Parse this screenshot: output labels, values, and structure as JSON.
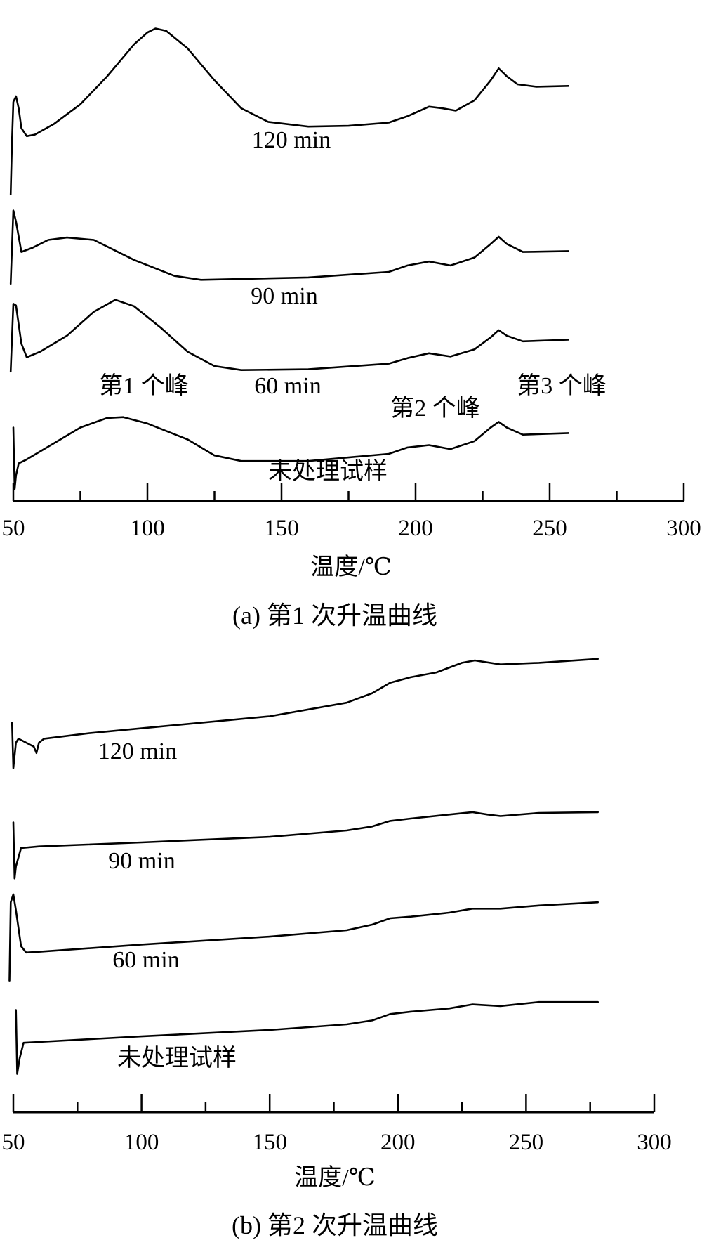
{
  "chart_data": [
    {
      "type": "line",
      "title": "(a) 第1 次升温曲线",
      "xlabel": "温度/℃",
      "ylabel": "",
      "xlim": [
        50,
        300
      ],
      "ylim": [
        0,
        630
      ],
      "xticks": [
        50,
        100,
        150,
        200,
        250,
        300
      ],
      "minor_xticks": [
        75,
        125,
        175,
        225,
        275
      ],
      "y_units": "relative heat flow (arbitrary, offset curves)",
      "grid": false,
      "series": [
        {
          "name": "120 min",
          "points": [
            [
              49,
              384
            ],
            [
              49.5,
              450
            ],
            [
              50,
              500
            ],
            [
              51,
              507
            ],
            [
              52,
              492
            ],
            [
              53,
              467
            ],
            [
              55,
              457
            ],
            [
              58,
              459
            ],
            [
              65,
              472
            ],
            [
              75,
              497
            ],
            [
              85,
              532
            ],
            [
              95,
              572
            ],
            [
              100,
              587
            ],
            [
              103,
              592
            ],
            [
              107,
              589
            ],
            [
              115,
              567
            ],
            [
              125,
              527
            ],
            [
              135,
              492
            ],
            [
              145,
              475
            ],
            [
              160,
              469
            ],
            [
              175,
              470
            ],
            [
              190,
              474
            ],
            [
              197,
              482
            ],
            [
              205,
              494
            ],
            [
              210,
              492
            ],
            [
              215,
              489
            ],
            [
              222,
              502
            ],
            [
              228,
              527
            ],
            [
              231,
              542
            ],
            [
              234,
              532
            ],
            [
              238,
              522
            ],
            [
              245,
              519
            ],
            [
              257,
              520
            ]
          ]
        },
        {
          "name": "90 min",
          "points": [
            [
              49,
              272
            ],
            [
              50,
              364
            ],
            [
              51,
              350
            ],
            [
              53,
              312
            ],
            [
              57,
              317
            ],
            [
              63,
              327
            ],
            [
              70,
              330
            ],
            [
              80,
              327
            ],
            [
              95,
              302
            ],
            [
              110,
              282
            ],
            [
              120,
              277
            ],
            [
              160,
              280
            ],
            [
              190,
              287
            ],
            [
              197,
              295
            ],
            [
              205,
              300
            ],
            [
              213,
              295
            ],
            [
              222,
              305
            ],
            [
              228,
              322
            ],
            [
              231,
              331
            ],
            [
              234,
              322
            ],
            [
              240,
              312
            ],
            [
              257,
              313
            ]
          ]
        },
        {
          "name": "60 min",
          "points": [
            [
              49,
              162
            ],
            [
              50,
              247
            ],
            [
              51,
              245
            ],
            [
              53,
              197
            ],
            [
              55,
              180
            ],
            [
              60,
              187
            ],
            [
              70,
              207
            ],
            [
              80,
              237
            ],
            [
              88,
              252
            ],
            [
              95,
              244
            ],
            [
              105,
              217
            ],
            [
              115,
              187
            ],
            [
              125,
              169
            ],
            [
              135,
              164
            ],
            [
              160,
              165
            ],
            [
              190,
              172
            ],
            [
              197,
              179
            ],
            [
              205,
              185
            ],
            [
              213,
              181
            ],
            [
              222,
              190
            ],
            [
              228,
              205
            ],
            [
              231,
              214
            ],
            [
              234,
              207
            ],
            [
              240,
              200
            ],
            [
              257,
              202
            ]
          ]
        },
        {
          "name": "未处理试样",
          "points": [
            [
              50,
              92
            ],
            [
              50.5,
              15
            ],
            [
              51,
              32
            ],
            [
              52,
              47
            ],
            [
              55,
              52
            ],
            [
              65,
              72
            ],
            [
              75,
              92
            ],
            [
              85,
              104
            ],
            [
              91,
              105
            ],
            [
              100,
              97
            ],
            [
              115,
              77
            ],
            [
              125,
              57
            ],
            [
              135,
              50
            ],
            [
              160,
              50
            ],
            [
              190,
              59
            ],
            [
              197,
              67
            ],
            [
              205,
              70
            ],
            [
              213,
              65
            ],
            [
              222,
              75
            ],
            [
              228,
              92
            ],
            [
              231,
              99
            ],
            [
              234,
              92
            ],
            [
              240,
              83
            ],
            [
              257,
              85
            ]
          ]
        }
      ],
      "annotations": [
        "120 min",
        "90 min",
        "60 min",
        "第1 个峰",
        "第2 个峰",
        "第3 个峰",
        "未处理试样"
      ]
    },
    {
      "type": "line",
      "title": "(b) 第2 次升温曲线",
      "xlabel": "温度/℃",
      "ylabel": "",
      "xlim": [
        50,
        300
      ],
      "ylim": [
        0,
        630
      ],
      "xticks": [
        50,
        100,
        150,
        200,
        250,
        300
      ],
      "minor_xticks": [
        75,
        125,
        175,
        225,
        275
      ],
      "y_units": "relative heat flow (arbitrary, offset curves)",
      "grid": false,
      "series": [
        {
          "name": "120 min",
          "points": [
            [
              49.5,
              488
            ],
            [
              50,
              431
            ],
            [
              51,
              463
            ],
            [
              52,
              468
            ],
            [
              55,
              463
            ],
            [
              58,
              458
            ],
            [
              59,
              450
            ],
            [
              60,
              463
            ],
            [
              62,
              468
            ],
            [
              80,
              475
            ],
            [
              100,
              481
            ],
            [
              150,
              496
            ],
            [
              180,
              513
            ],
            [
              190,
              525
            ],
            [
              197,
              538
            ],
            [
              205,
              545
            ],
            [
              215,
              551
            ],
            [
              225,
              563
            ],
            [
              230,
              566
            ],
            [
              240,
              561
            ],
            [
              255,
              563
            ],
            [
              278,
              568
            ]
          ]
        },
        {
          "name": "90 min",
          "points": [
            [
              50,
              363
            ],
            [
              50.5,
              293
            ],
            [
              51,
              308
            ],
            [
              53,
              331
            ],
            [
              60,
              333
            ],
            [
              100,
              338
            ],
            [
              150,
              345
            ],
            [
              180,
              353
            ],
            [
              190,
              358
            ],
            [
              197,
              365
            ],
            [
              205,
              368
            ],
            [
              220,
              373
            ],
            [
              229,
              376
            ],
            [
              235,
              373
            ],
            [
              240,
              371
            ],
            [
              255,
              375
            ],
            [
              278,
              376
            ]
          ]
        },
        {
          "name": "60 min",
          "points": [
            [
              48.5,
              165
            ],
            [
              49,
              263
            ],
            [
              50,
              273
            ],
            [
              51,
              253
            ],
            [
              53,
              208
            ],
            [
              55,
              200
            ],
            [
              60,
              201
            ],
            [
              100,
              210
            ],
            [
              150,
              220
            ],
            [
              180,
              228
            ],
            [
              190,
              235
            ],
            [
              197,
              243
            ],
            [
              205,
              245
            ],
            [
              220,
              250
            ],
            [
              229,
              255
            ],
            [
              240,
              255
            ],
            [
              255,
              259
            ],
            [
              278,
              263
            ]
          ]
        },
        {
          "name": "未处理试样",
          "points": [
            [
              51,
              128
            ],
            [
              51.5,
              48
            ],
            [
              52.5,
              68
            ],
            [
              54,
              87
            ],
            [
              60,
              88
            ],
            [
              100,
              95
            ],
            [
              150,
              103
            ],
            [
              180,
              110
            ],
            [
              190,
              115
            ],
            [
              197,
              123
            ],
            [
              205,
              126
            ],
            [
              220,
              130
            ],
            [
              229,
              135
            ],
            [
              240,
              133
            ],
            [
              255,
              138
            ],
            [
              278,
              138
            ]
          ]
        }
      ],
      "annotations": [
        "120 min",
        "90 min",
        "60 min",
        "未处理试样"
      ]
    }
  ]
}
